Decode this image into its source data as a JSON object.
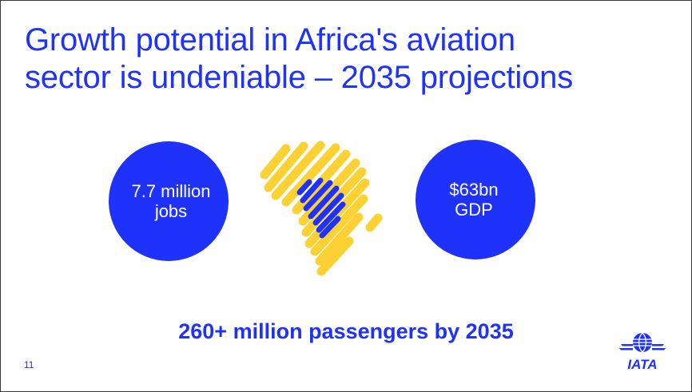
{
  "slide": {
    "title_lines": [
      "Growth potential in Africa's aviation",
      "sector is undeniable – 2035 projections"
    ],
    "stats": {
      "jobs": {
        "lines": [
          "7.7 million",
          "jobs"
        ]
      },
      "gdp": {
        "lines": [
          "$63bn",
          "GDP"
        ]
      }
    },
    "headline": "260+ million passengers by 2035",
    "page_number": "11",
    "logo_text": "IATA",
    "map_icon": "africa-map-icon"
  },
  "colors": {
    "brand_blue": "#1e32fa",
    "accent_yellow": "#fcd133",
    "background": "#ffffff"
  }
}
